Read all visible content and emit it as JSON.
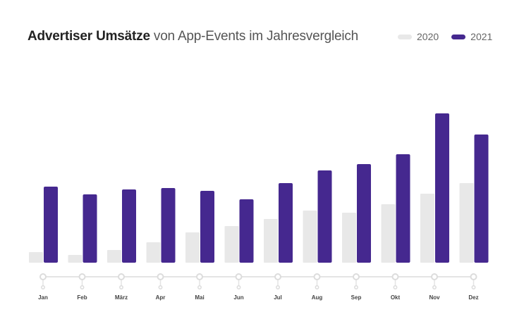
{
  "chart_data": {
    "type": "bar",
    "title_bold": "Advertiser Umsätze",
    "title_rest": " von App-Events im Jahresvergleich",
    "xlabel": "",
    "ylabel": "",
    "ylim": [
      0,
      220
    ],
    "grid": false,
    "legend_position": "top-right",
    "categories": [
      "Jan",
      "Feb",
      "März",
      "Apr",
      "Mai",
      "Jun",
      "Jul",
      "Aug",
      "Sep",
      "Okt",
      "Nov",
      "Dez"
    ],
    "series": [
      {
        "name": "2020",
        "color": "#e8e8e8",
        "values": [
          15,
          11,
          18,
          29,
          43,
          52,
          62,
          74,
          71,
          83,
          98,
          113
        ]
      },
      {
        "name": "2021",
        "color": "#45288f",
        "values": [
          108,
          97,
          104,
          106,
          102,
          90,
          113,
          131,
          140,
          154,
          212,
          182
        ]
      }
    ]
  }
}
